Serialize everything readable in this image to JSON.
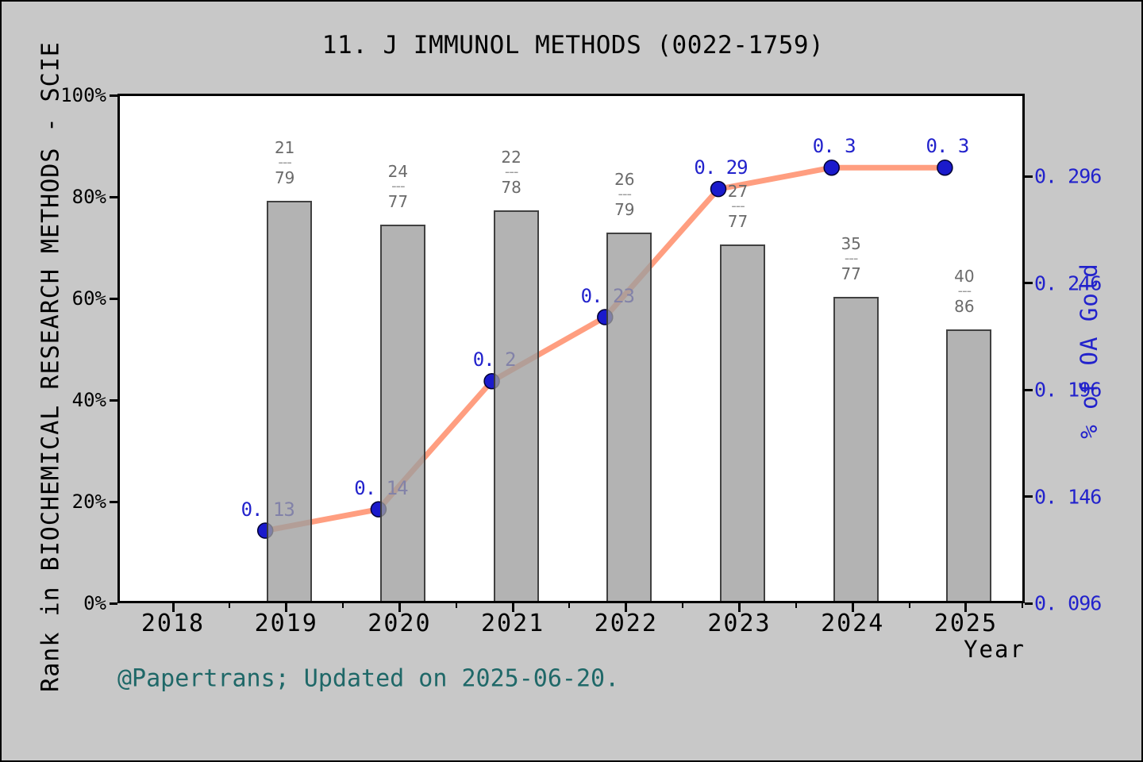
{
  "title": "11. J IMMUNOL METHODS (0022-1759)",
  "footer": "@Papertrans; Updated on 2025-06-20.",
  "axes": {
    "left": {
      "title": "Rank in BIOCHEMICAL RESEARCH METHODS - SCIE",
      "tick_labels": [
        "100%",
        "80%",
        "60%",
        "40%",
        "20%",
        "0%"
      ]
    },
    "right": {
      "title": "% of OA Gold",
      "tick_labels": [
        "0. 296",
        "0. 246",
        "0. 196",
        "0. 146",
        "0. 096"
      ]
    },
    "bottom": {
      "title": "Year",
      "tick_labels": [
        "2018",
        "2019",
        "2020",
        "2021",
        "2022",
        "2023",
        "2024",
        "2025"
      ]
    }
  },
  "chart_data": {
    "type": "combo",
    "subtype": "bar+line",
    "title": "11. J IMMUNOL METHODS (0022-1759)",
    "xlabel": "Year",
    "ylabel_left": "Rank in BIOCHEMICAL RESEARCH METHODS - SCIE",
    "ylabel_right": "% of OA Gold",
    "categories": [
      2019,
      2020,
      2021,
      2022,
      2023,
      2024,
      2025
    ],
    "bar_series": {
      "name": "Rank in BIOCHEMICAL RESEARCH METHODS - SCIE",
      "axis": "left",
      "values_percent": [
        79.2,
        74.6,
        77.4,
        72.9,
        70.7,
        60.3,
        53.9
      ],
      "rank_fractions": [
        {
          "numerator": "21",
          "denominator": "79"
        },
        {
          "numerator": "24",
          "denominator": "77"
        },
        {
          "numerator": "22",
          "denominator": "78"
        },
        {
          "numerator": "26",
          "denominator": "79"
        },
        {
          "numerator": "27",
          "denominator": "77"
        },
        {
          "numerator": "35",
          "denominator": "77"
        },
        {
          "numerator": "40",
          "denominator": "86"
        }
      ]
    },
    "line_series": {
      "name": "% of OA Gold",
      "axis": "right",
      "values": [
        0.13,
        0.14,
        0.2,
        0.23,
        0.29,
        0.3,
        0.3
      ],
      "point_labels": [
        "0. 13",
        "0. 14",
        "0. 2",
        "0. 23",
        "0. 29",
        "0. 3",
        "0. 3"
      ]
    },
    "left_axis": {
      "range_percent": [
        0,
        100
      ],
      "ticks_percent": [
        100,
        80,
        60,
        40,
        20,
        0
      ]
    },
    "right_axis": {
      "range": [
        0.096,
        0.334
      ],
      "ticks": [
        0.296,
        0.246,
        0.196,
        0.146,
        0.096
      ]
    },
    "x_axis": {
      "range": [
        2017.5,
        2025.5
      ],
      "major_ticks": [
        2018,
        2019,
        2020,
        2021,
        2022,
        2023,
        2024,
        2025
      ],
      "minor_ticks": [
        2018.5,
        2019.5,
        2020.5,
        2021.5,
        2022.5,
        2023.5,
        2024.5,
        2025.5
      ]
    },
    "grid": false,
    "legend": "none"
  },
  "colors": {
    "background": "#c8c8c8",
    "plot_background": "#ffffff",
    "bar_fill": "#9e9e9e",
    "bar_edge": "#2d2d2d",
    "line": "#ff9e80",
    "dot_fill": "#1a1acc",
    "dot_edge": "#000033",
    "blue_text": "#2222cc",
    "gray_label_text": "#6b6b6b",
    "footer_text": "#1f6868",
    "frame": "#000000"
  }
}
